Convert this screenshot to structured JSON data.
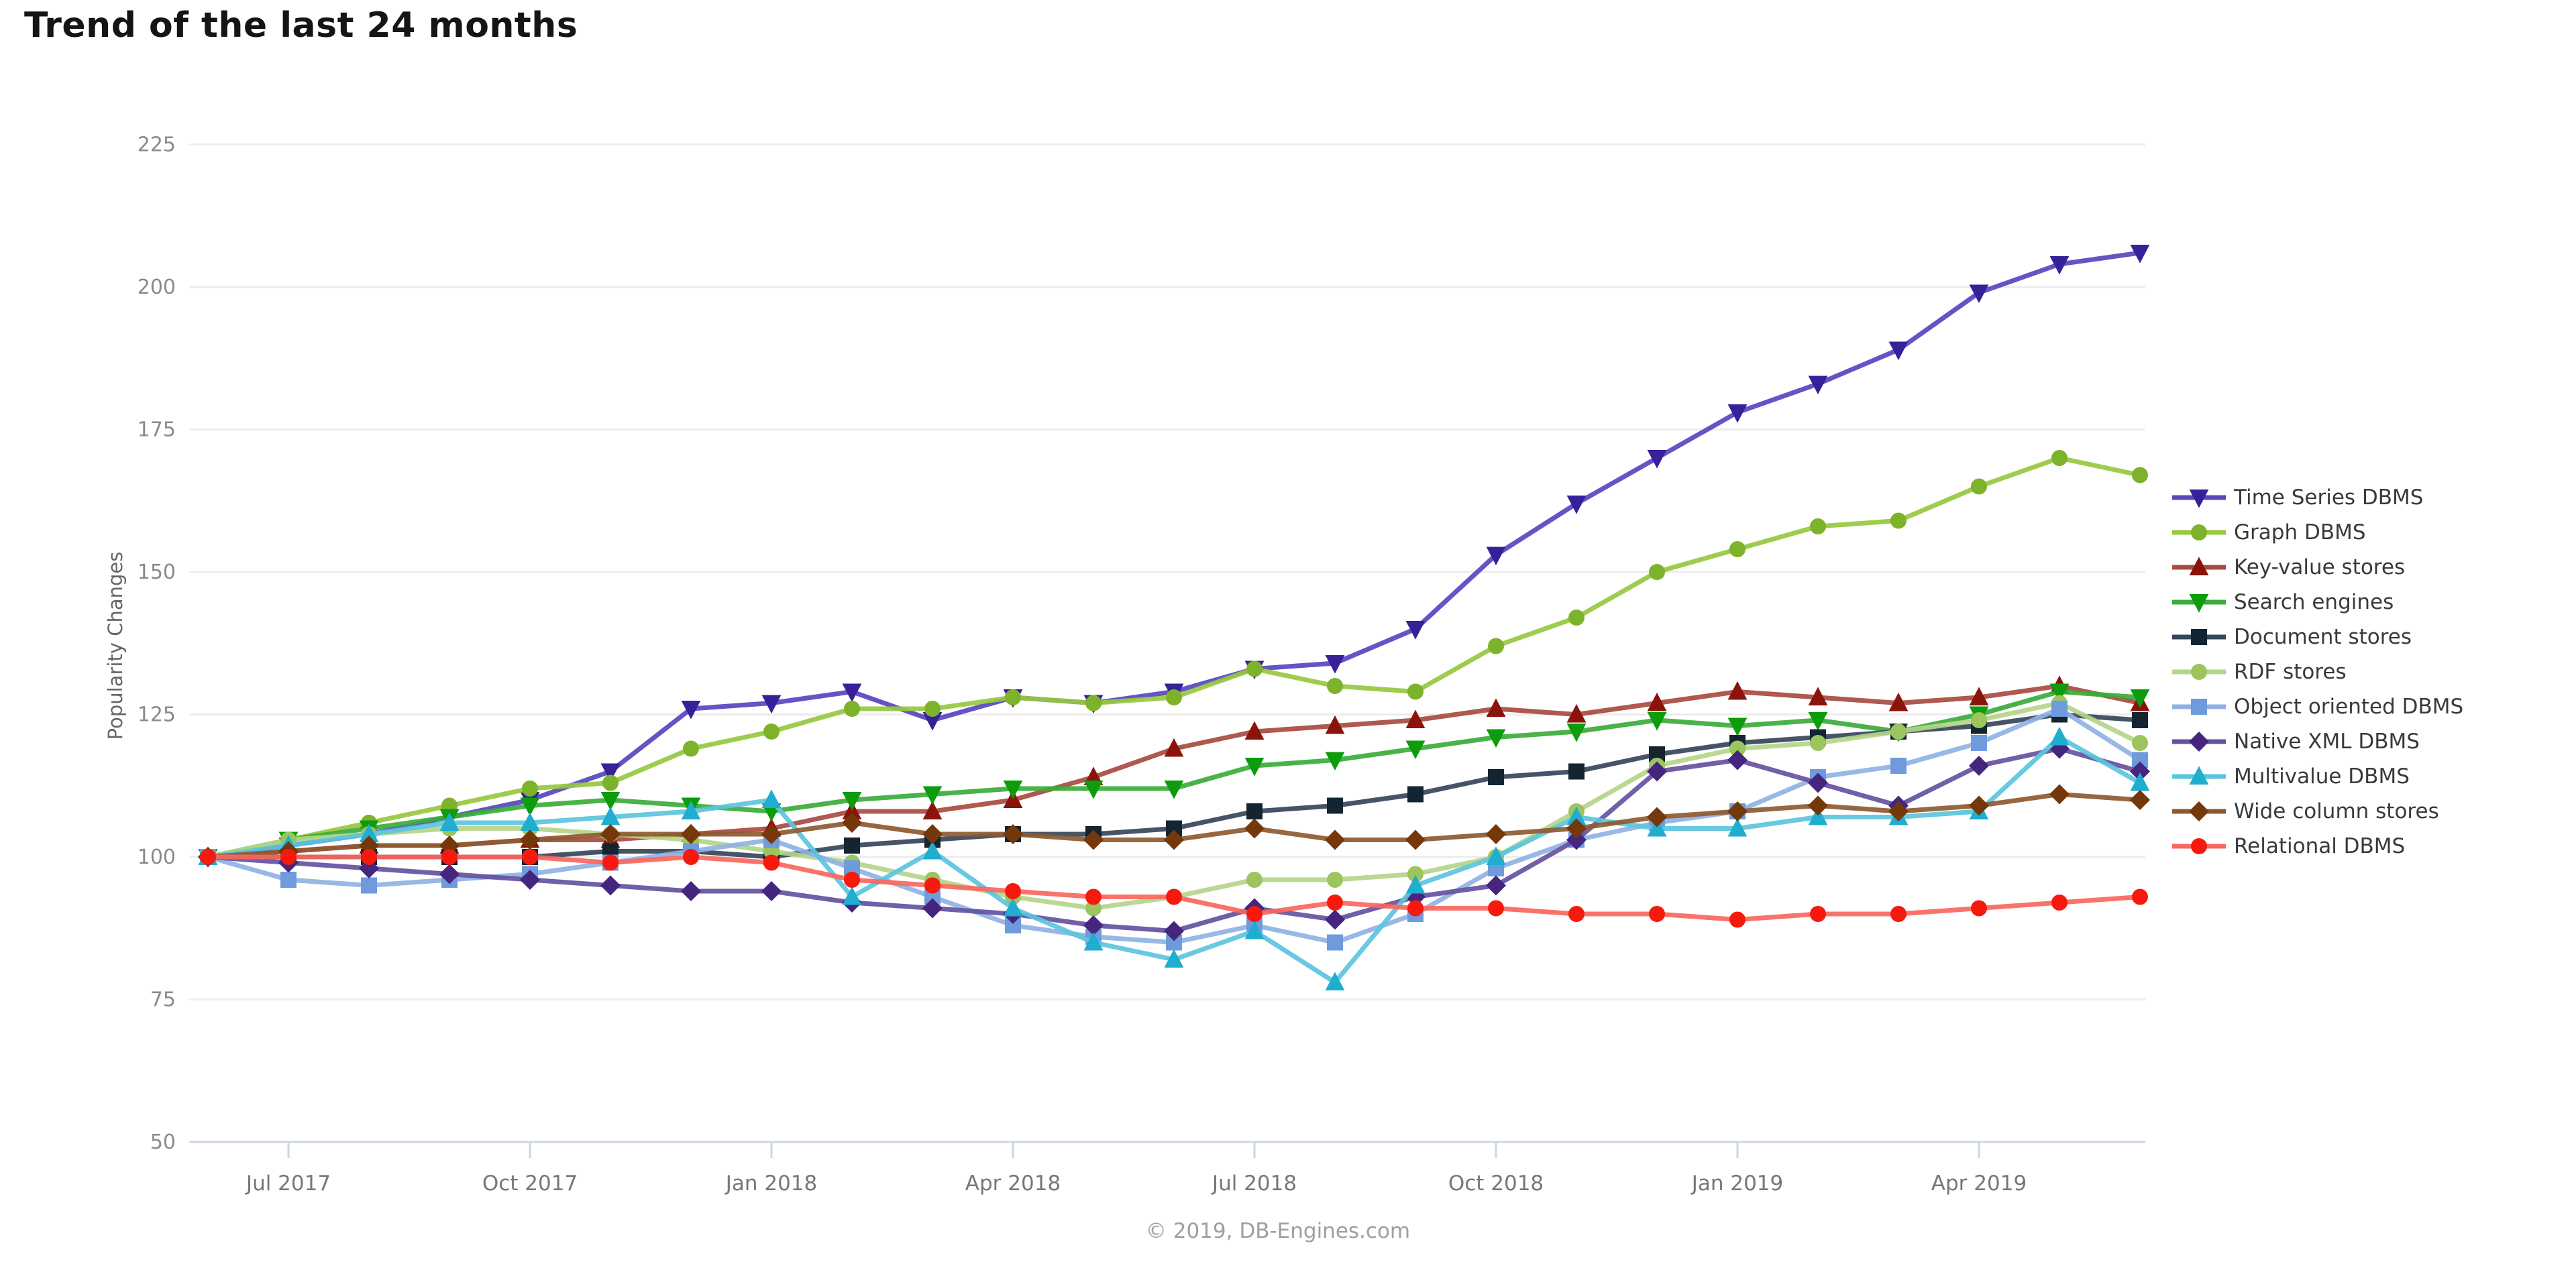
{
  "header": {
    "title": "Trend of the last 24 months"
  },
  "footer": {
    "copyright": "© 2019, DB-Engines.com"
  },
  "colors": {
    "background": "#ffffff",
    "gridline": "#ececec",
    "axis_line": "#c9d7e4",
    "y_tick_label": "#8a8a8a",
    "x_tick_label": "#777777",
    "legend_text": "#3a3a3a",
    "title_text": "#151515",
    "footer_text": "#9aa0a6",
    "axis_title_text": "#666666"
  },
  "chart_data": {
    "type": "line",
    "title": "Trend of the last 24 months",
    "xlabel": "",
    "ylabel": "Popularity Changes",
    "ylim": [
      50,
      225
    ],
    "y_ticks": [
      225,
      200,
      175,
      150,
      125,
      100,
      75,
      50
    ],
    "grid": true,
    "legend_position": "right",
    "x": [
      "Jun 2017",
      "Jul 2017",
      "Aug 2017",
      "Sep 2017",
      "Oct 2017",
      "Nov 2017",
      "Dec 2017",
      "Jan 2018",
      "Feb 2018",
      "Mar 2018",
      "Apr 2018",
      "May 2018",
      "Jun 2018",
      "Jul 2018",
      "Aug 2018",
      "Sep 2018",
      "Oct 2018",
      "Nov 2018",
      "Dec 2018",
      "Jan 2019",
      "Feb 2019",
      "Mar 2019",
      "Apr 2019",
      "May 2019",
      "Jun 2019"
    ],
    "x_tick_indices": [
      1,
      4,
      7,
      10,
      13,
      16,
      19,
      22
    ],
    "x_tick_labels": [
      "Jul 2017",
      "Oct 2017",
      "Jan 2018",
      "Apr 2018",
      "Jul 2018",
      "Oct 2018",
      "Jan 2019",
      "Apr 2019"
    ],
    "series": [
      {
        "name": "Time Series DBMS",
        "shape": "triangle-down",
        "line_color": "#5646c0",
        "marker_color": "#372099",
        "values": [
          100,
          102,
          104,
          107,
          110,
          115,
          126,
          127,
          129,
          124,
          128,
          127,
          129,
          133,
          134,
          140,
          153,
          162,
          170,
          178,
          183,
          189,
          199,
          204,
          206
        ]
      },
      {
        "name": "Graph DBMS",
        "shape": "circle",
        "line_color": "#97c83f",
        "marker_color": "#7db32a",
        "values": [
          100,
          103,
          106,
          109,
          112,
          113,
          119,
          122,
          126,
          126,
          128,
          127,
          128,
          133,
          130,
          129,
          137,
          142,
          150,
          154,
          158,
          159,
          165,
          170,
          167
        ]
      },
      {
        "name": "Key-value stores",
        "shape": "triangle-up",
        "line_color": "#a84b41",
        "marker_color": "#8a140b",
        "values": [
          100,
          101,
          102,
          102,
          103,
          103,
          104,
          105,
          108,
          108,
          110,
          114,
          119,
          122,
          123,
          124,
          126,
          125,
          127,
          129,
          128,
          127,
          128,
          130,
          127
        ]
      },
      {
        "name": "Search engines",
        "shape": "triangle-down",
        "line_color": "#3aad3a",
        "marker_color": "#0c9c0c",
        "values": [
          100,
          103,
          105,
          107,
          109,
          110,
          109,
          108,
          110,
          111,
          112,
          112,
          112,
          116,
          117,
          119,
          121,
          122,
          124,
          123,
          124,
          122,
          125,
          129,
          128
        ]
      },
      {
        "name": "Document stores",
        "shape": "square",
        "line_color": "#35475a",
        "marker_color": "#142431",
        "values": [
          100,
          100,
          100,
          100,
          100,
          101,
          101,
          100,
          102,
          103,
          104,
          104,
          105,
          108,
          109,
          111,
          114,
          115,
          118,
          120,
          121,
          122,
          123,
          125,
          124
        ]
      },
      {
        "name": "RDF stores",
        "shape": "circle",
        "line_color": "#b5d58a",
        "marker_color": "#9cc45f",
        "values": [
          100,
          103,
          104,
          105,
          105,
          104,
          103,
          101,
          99,
          96,
          93,
          91,
          93,
          96,
          96,
          97,
          100,
          108,
          116,
          119,
          120,
          122,
          124,
          127,
          120
        ]
      },
      {
        "name": "Object oriented DBMS",
        "shape": "square",
        "line_color": "#8fb2e4",
        "marker_color": "#6f9bdd",
        "values": [
          100,
          96,
          95,
          96,
          97,
          99,
          101,
          103,
          98,
          93,
          88,
          86,
          85,
          88,
          85,
          90,
          98,
          103,
          106,
          108,
          114,
          116,
          120,
          126,
          117
        ]
      },
      {
        "name": "Native XML DBMS",
        "shape": "diamond",
        "line_color": "#65519f",
        "marker_color": "#46257f",
        "values": [
          100,
          99,
          98,
          97,
          96,
          95,
          94,
          94,
          92,
          91,
          90,
          88,
          87,
          91,
          89,
          93,
          95,
          103,
          115,
          117,
          113,
          109,
          116,
          119,
          115
        ]
      },
      {
        "name": "Multivalue DBMS",
        "shape": "triangle-up",
        "line_color": "#5bc4de",
        "marker_color": "#1fadd0",
        "values": [
          100,
          102,
          104,
          106,
          106,
          107,
          108,
          110,
          93,
          101,
          91,
          85,
          82,
          87,
          78,
          95,
          100,
          107,
          105,
          105,
          107,
          107,
          108,
          121,
          113
        ]
      },
      {
        "name": "Wide column stores",
        "shape": "diamond",
        "line_color": "#8d5a30",
        "marker_color": "#74380b",
        "values": [
          100,
          101,
          102,
          102,
          103,
          104,
          104,
          104,
          106,
          104,
          104,
          103,
          103,
          105,
          103,
          103,
          104,
          105,
          107,
          108,
          109,
          108,
          109,
          111,
          110
        ]
      },
      {
        "name": "Relational DBMS",
        "shape": "circle",
        "line_color": "#f9675e",
        "marker_color": "#f6190e",
        "values": [
          100,
          100,
          100,
          100,
          100,
          99,
          100,
          99,
          96,
          95,
          94,
          93,
          93,
          90,
          92,
          91,
          91,
          90,
          90,
          89,
          90,
          90,
          91,
          92,
          93
        ]
      }
    ]
  }
}
